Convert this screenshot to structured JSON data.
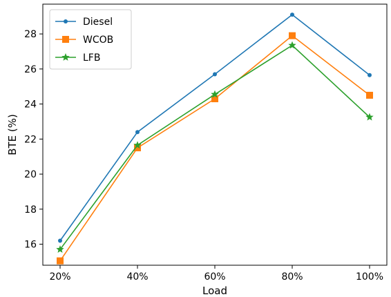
{
  "chart_data": {
    "type": "line",
    "title": "",
    "xlabel": "Load",
    "ylabel": "BTE (%)",
    "categories": [
      "20%",
      "40%",
      "60%",
      "80%",
      "100%"
    ],
    "ylim": [
      14.8,
      29.7
    ],
    "yticks": [
      16,
      18,
      20,
      22,
      24,
      26,
      28
    ],
    "grid": false,
    "legend_position": "top-left",
    "series": [
      {
        "name": "Diesel",
        "values": [
          16.2,
          22.4,
          25.7,
          29.1,
          25.65
        ],
        "color": "#1f77b4",
        "marker": "circle"
      },
      {
        "name": "WCOB",
        "values": [
          15.05,
          21.5,
          24.3,
          27.9,
          24.5
        ],
        "color": "#ff7f0e",
        "marker": "square"
      },
      {
        "name": "LFB",
        "values": [
          15.7,
          21.65,
          24.55,
          27.35,
          23.25
        ],
        "color": "#2ca02c",
        "marker": "star"
      }
    ]
  }
}
